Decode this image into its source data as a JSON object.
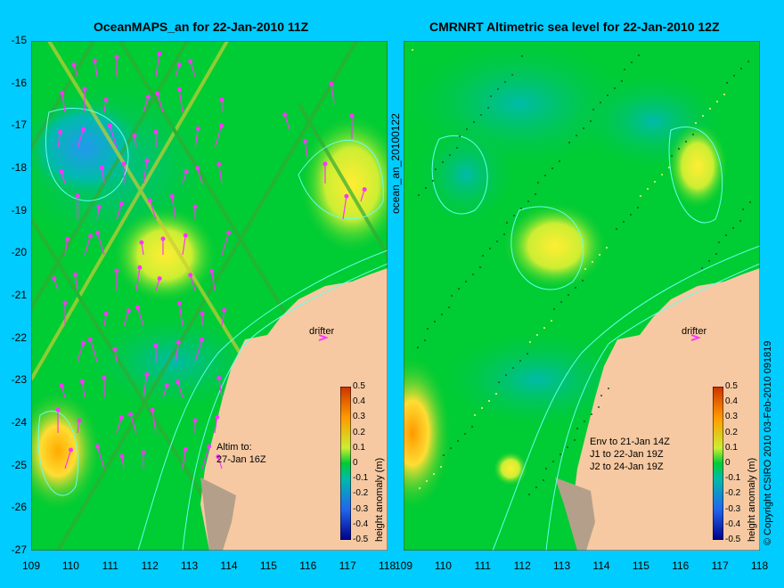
{
  "left_panel": {
    "title": "OceanMAPS_an for 22-Jan-2010 11Z",
    "side_label": "ocean_an_20100122",
    "drifter_label": "drifter",
    "note": "Altim to:\n27-Jan 16Z",
    "x_ticks": [
      "109",
      "110",
      "111",
      "112",
      "113",
      "114",
      "115",
      "116",
      "117",
      "118"
    ],
    "y_ticks": [
      "-15",
      "-16",
      "-17",
      "-18",
      "-19",
      "-20",
      "-21",
      "-22",
      "-23",
      "-24",
      "-25",
      "-26",
      "-27"
    ]
  },
  "right_panel": {
    "title": "CMRNRT Altimetric sea level  for 22-Jan-2010 12Z",
    "side_label": "© Copyright CSIRO 2010  03-Feb-2010 091819",
    "drifter_label": "drifter",
    "note": "Env to 21-Jan 14Z\nJ1 to 22-Jan 19Z\nJ2 to 24-Jan 19Z",
    "x_ticks": [
      "109",
      "110",
      "111",
      "112",
      "113",
      "114",
      "115",
      "116",
      "117",
      "118"
    ]
  },
  "colorbar": {
    "label": "height anomaly (m)",
    "ticks": [
      "0.5",
      "0.4",
      "0.3",
      "0.2",
      "0.1",
      "0",
      "-0.1",
      "-0.2",
      "-0.3",
      "-0.4",
      "-0.5"
    ]
  },
  "colors": {
    "background": "#00ccff",
    "ocean": "#00cc33",
    "land": "#f6c9a2",
    "coast_shelf": "#b4a08a",
    "contour": "#66ffee",
    "arrow": "#ff33ff"
  }
}
